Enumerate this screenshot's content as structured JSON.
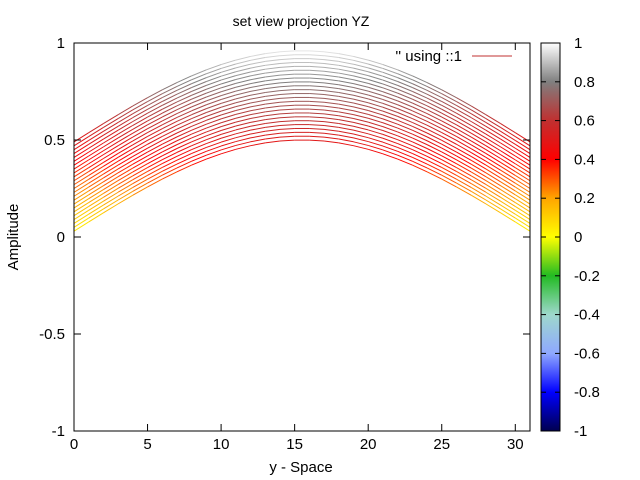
{
  "chart_data": {
    "type": "line",
    "title": "set view projection YZ",
    "xlabel": "y - Space",
    "ylabel": "Amplitude",
    "xlim": [
      0,
      31
    ],
    "ylim": [
      -1,
      1
    ],
    "x_ticks": [
      "0",
      "5",
      "10",
      "15",
      "20",
      "25",
      "30"
    ],
    "y_ticks": [
      "1",
      "0.5",
      "0",
      "-0.5",
      "-1"
    ],
    "legend": {
      "label": "'' using ::1",
      "position": "top-right"
    },
    "colorbar": {
      "range": [
        -1,
        1
      ],
      "ticks": [
        "1",
        "0.8",
        "0.6",
        "0.4",
        "0.2",
        "0",
        "-0.2",
        "-0.4",
        "-0.6",
        "-0.8",
        "-1"
      ],
      "palette": [
        {
          "v": -1.0,
          "color": "#000050"
        },
        {
          "v": -0.8,
          "color": "#0000ff"
        },
        {
          "v": -0.6,
          "color": "#8fa8ff"
        },
        {
          "v": -0.4,
          "color": "#9ed8cc"
        },
        {
          "v": -0.2,
          "color": "#22bb22"
        },
        {
          "v": 0.0,
          "color": "#ffff00"
        },
        {
          "v": 0.2,
          "color": "#ffa500"
        },
        {
          "v": 0.4,
          "color": "#ff0000"
        },
        {
          "v": 0.6,
          "color": "#c03030"
        },
        {
          "v": 0.8,
          "color": "#7f7f7f"
        },
        {
          "v": 1.0,
          "color": "#ffffff"
        }
      ]
    },
    "series": {
      "count": 24,
      "x_samples": 32,
      "curve": "offset + A*sin(pi*y/31)",
      "offsets": [
        0.03,
        0.05,
        0.07,
        0.09,
        0.11,
        0.13,
        0.15,
        0.17,
        0.19,
        0.21,
        0.23,
        0.25,
        0.27,
        0.29,
        0.31,
        0.33,
        0.35,
        0.37,
        0.39,
        0.41,
        0.43,
        0.45,
        0.47,
        0.49
      ],
      "amplitudes": [
        0.47,
        0.47,
        0.47,
        0.47,
        0.47,
        0.47,
        0.47,
        0.47,
        0.47,
        0.47,
        0.47,
        0.47,
        0.47,
        0.47,
        0.47,
        0.47,
        0.47,
        0.47,
        0.47,
        0.47,
        0.47,
        0.47,
        0.47,
        0.47
      ]
    }
  }
}
